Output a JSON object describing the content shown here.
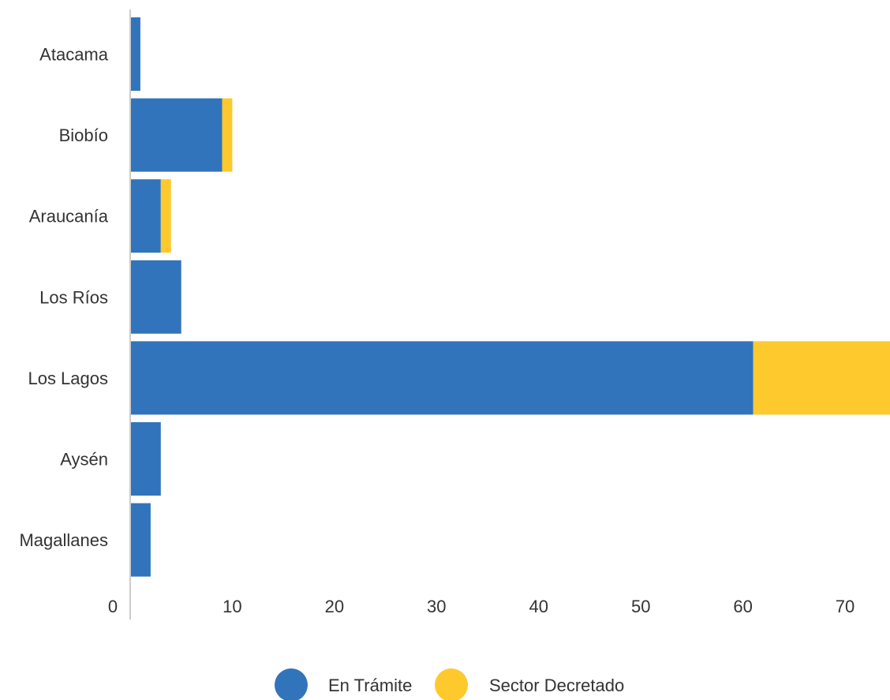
{
  "chart_data": {
    "type": "bar",
    "orientation": "horizontal",
    "stacked": true,
    "categories": [
      "Atacama",
      "Biobío",
      "Araucanía",
      "Los Ríos",
      "Los Lagos",
      "Aysén",
      "Magallanes"
    ],
    "series": [
      {
        "name": "En Trámite",
        "color": "#3274bb",
        "values": [
          1,
          9,
          3,
          5,
          61,
          3,
          2
        ]
      },
      {
        "name": "Sector Decretado",
        "color": "#fdc92d",
        "values": [
          0,
          1,
          1,
          0,
          14,
          0,
          0
        ]
      }
    ],
    "xlim": [
      0,
      74.4
    ],
    "xticks": [
      0,
      10,
      20,
      30,
      40,
      50,
      60,
      70
    ],
    "title": "",
    "xlabel": "",
    "ylabel": "",
    "grid": false,
    "legend_position": "bottom"
  }
}
